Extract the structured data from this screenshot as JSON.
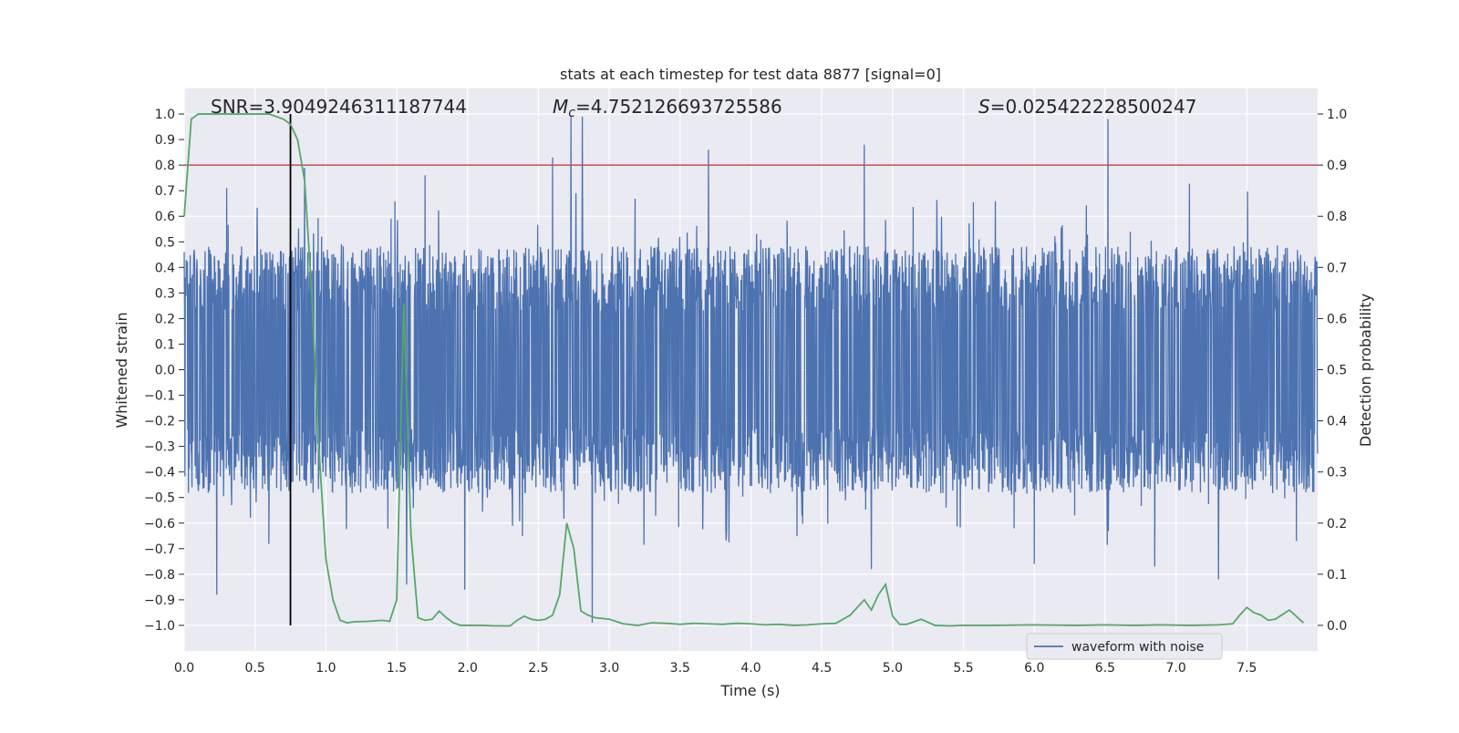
{
  "chart_data": {
    "type": "line",
    "title": "stats at each timestep for test data 8877 [signal=0]",
    "xlabel": "Time (s)",
    "ylabel_left": "Whitened strain",
    "ylabel_right": "Detection probability",
    "xlim": [
      0.0,
      8.0
    ],
    "ylim_left": [
      -1.1,
      1.1
    ],
    "ylim_right": [
      -0.05,
      1.05
    ],
    "x_ticks": [
      "0.0",
      "0.5",
      "1.0",
      "1.5",
      "2.0",
      "2.5",
      "3.0",
      "3.5",
      "4.0",
      "4.5",
      "5.0",
      "5.5",
      "6.0",
      "6.5",
      "7.0",
      "7.5"
    ],
    "x_tick_values": [
      0.0,
      0.5,
      1.0,
      1.5,
      2.0,
      2.5,
      3.0,
      3.5,
      4.0,
      4.5,
      5.0,
      5.5,
      6.0,
      6.5,
      7.0,
      7.5
    ],
    "y_ticks_left": [
      "1.0",
      "0.9",
      "0.8",
      "0.7",
      "0.6",
      "0.5",
      "0.4",
      "0.3",
      "0.2",
      "0.1",
      "0.0",
      "−0.1",
      "−0.2",
      "−0.3",
      "−0.4",
      "−0.5",
      "−0.6",
      "−0.7",
      "−0.8",
      "−0.9",
      "−1.0"
    ],
    "y_tick_values_left": [
      1.0,
      0.9,
      0.8,
      0.7,
      0.6,
      0.5,
      0.4,
      0.3,
      0.2,
      0.1,
      0.0,
      -0.1,
      -0.2,
      -0.3,
      -0.4,
      -0.5,
      -0.6,
      -0.7,
      -0.8,
      -0.9,
      -1.0
    ],
    "y_ticks_right": [
      "1.0",
      "0.9",
      "0.8",
      "0.7",
      "0.6",
      "0.5",
      "0.4",
      "0.3",
      "0.2",
      "0.1",
      "0.0"
    ],
    "y_tick_values_right": [
      1.0,
      0.9,
      0.8,
      0.7,
      0.6,
      0.5,
      0.4,
      0.3,
      0.2,
      0.1,
      0.0
    ],
    "annotations": {
      "snr": "SNR=3.9049246311187744",
      "mc_symbol": "M",
      "mc_sub": "c",
      "mc_value": "=4.752126693725586",
      "s_symbol": "S",
      "s_value": "=0.025422228500247"
    },
    "threshold": {
      "value": 0.9,
      "axis": "right",
      "color": "#c44e52"
    },
    "marker": {
      "x": 0.75,
      "y_from": -1.0,
      "y_to": 1.0,
      "color": "#000000"
    },
    "series": [
      {
        "name": "waveform with noise",
        "axis": "left",
        "color": "#4c72b0",
        "generator": "noise",
        "sample_rate": 400,
        "envelope_positive": 0.42,
        "envelope_negative": -0.42,
        "spikes": [
          {
            "x": 0.3,
            "y": 0.71
          },
          {
            "x": 0.85,
            "y": 0.79
          },
          {
            "x": 1.7,
            "y": 0.76
          },
          {
            "x": 2.6,
            "y": 0.83
          },
          {
            "x": 2.73,
            "y": 0.99
          },
          {
            "x": 2.81,
            "y": 0.99
          },
          {
            "x": 3.7,
            "y": 0.86
          },
          {
            "x": 4.8,
            "y": 0.88
          },
          {
            "x": 6.52,
            "y": 0.98
          },
          {
            "x": 0.23,
            "y": -0.88
          },
          {
            "x": 1.57,
            "y": -0.84
          },
          {
            "x": 2.88,
            "y": -0.99
          },
          {
            "x": 1.98,
            "y": -0.86
          },
          {
            "x": 4.85,
            "y": -0.78
          },
          {
            "x": 6.0,
            "y": -0.76
          },
          {
            "x": 6.85,
            "y": -0.77
          },
          {
            "x": 7.3,
            "y": -0.82
          },
          {
            "x": 7.85,
            "y": -0.67
          }
        ]
      },
      {
        "name": "detection probability",
        "axis": "right",
        "color": "#55a868",
        "x": [
          0.0,
          0.05,
          0.1,
          0.2,
          0.3,
          0.4,
          0.5,
          0.6,
          0.7,
          0.75,
          0.8,
          0.85,
          0.9,
          0.95,
          1.0,
          1.05,
          1.1,
          1.15,
          1.2,
          1.3,
          1.4,
          1.45,
          1.5,
          1.55,
          1.6,
          1.65,
          1.7,
          1.75,
          1.8,
          1.85,
          1.9,
          1.95,
          2.0,
          2.1,
          2.2,
          2.3,
          2.35,
          2.4,
          2.45,
          2.5,
          2.55,
          2.6,
          2.65,
          2.7,
          2.75,
          2.8,
          2.85,
          2.9,
          3.0,
          3.1,
          3.2,
          3.3,
          3.4,
          3.5,
          3.6,
          3.7,
          3.8,
          3.9,
          4.0,
          4.1,
          4.2,
          4.3,
          4.4,
          4.5,
          4.6,
          4.7,
          4.8,
          4.85,
          4.9,
          4.95,
          5.0,
          5.05,
          5.1,
          5.2,
          5.3,
          5.4,
          5.5,
          5.7,
          6.0,
          6.3,
          6.5,
          6.7,
          6.9,
          7.1,
          7.3,
          7.4,
          7.45,
          7.5,
          7.55,
          7.6,
          7.65,
          7.7,
          7.8,
          7.9
        ],
        "values": [
          0.8,
          0.99,
          1.0,
          1.0,
          1.0,
          1.0,
          1.0,
          1.0,
          0.99,
          0.98,
          0.95,
          0.87,
          0.65,
          0.35,
          0.13,
          0.05,
          0.01,
          0.005,
          0.007,
          0.008,
          0.01,
          0.008,
          0.05,
          0.63,
          0.18,
          0.015,
          0.01,
          0.012,
          0.028,
          0.015,
          0.005,
          0.0,
          0.0,
          0.0,
          -0.001,
          -0.001,
          0.01,
          0.018,
          0.012,
          0.01,
          0.012,
          0.02,
          0.06,
          0.2,
          0.15,
          0.028,
          0.02,
          0.015,
          0.012,
          0.003,
          0.0,
          0.005,
          0.004,
          0.002,
          0.004,
          0.003,
          0.002,
          0.004,
          0.003,
          0.001,
          0.002,
          0.0,
          0.001,
          0.003,
          0.004,
          0.02,
          0.05,
          0.03,
          0.06,
          0.08,
          0.018,
          0.002,
          0.002,
          0.012,
          0.0,
          -0.001,
          0.0,
          0.0,
          0.001,
          0.0,
          0.001,
          0.0,
          0.001,
          0.0,
          0.001,
          0.003,
          0.02,
          0.035,
          0.025,
          0.02,
          0.01,
          0.012,
          0.03,
          0.005
        ]
      }
    ],
    "legend": {
      "position": "bottom-right",
      "entries": [
        "waveform with noise"
      ]
    }
  }
}
